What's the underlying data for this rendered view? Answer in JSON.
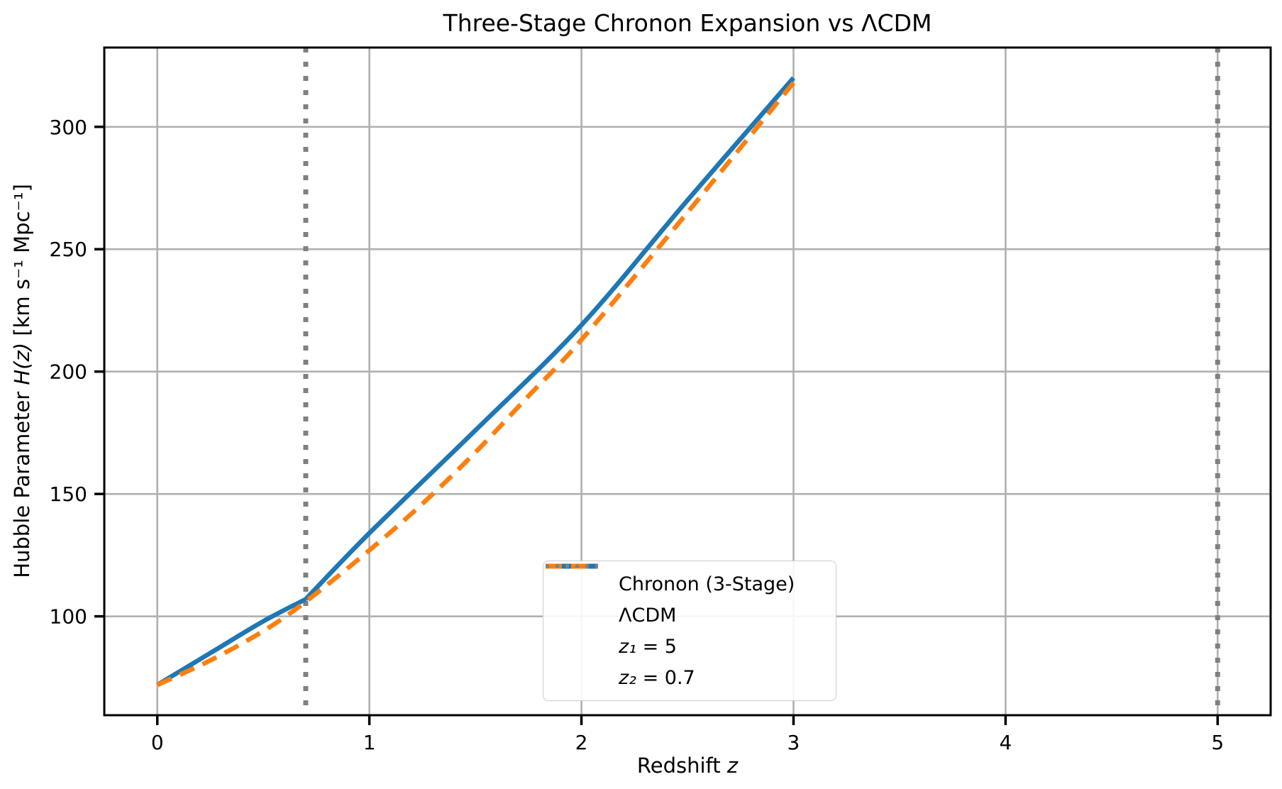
{
  "chart_data": {
    "type": "line",
    "title": "Three-Stage Chronon Expansion vs ΛCDM",
    "xlabel": "Redshift z",
    "ylabel": "Hubble Parameter H(z) [km s⁻¹ Mpc⁻¹]",
    "xlabel_parts": {
      "pre": "Redshift ",
      "math": "z"
    },
    "ylabel_parts": {
      "pre": "Hubble Parameter ",
      "math": "H(z)",
      "post": " [km s⁻¹ Mpc⁻¹]"
    },
    "xlim": [
      -0.25,
      5.25
    ],
    "ylim": [
      59.6,
      332.4
    ],
    "xticks": [
      0,
      1,
      2,
      3,
      4,
      5
    ],
    "yticks": [
      100,
      150,
      200,
      250,
      300
    ],
    "grid": true,
    "legend_position": "lower center",
    "series": [
      {
        "name": "Chronon (3-Stage)",
        "color": "#1f77b4",
        "style": "solid",
        "segments": [
          {
            "x": [
              0,
              0.25,
              0.5,
              0.7
            ],
            "y": [
              72,
              85,
              98,
              107
            ]
          },
          {
            "x": [
              0.7,
              1.0,
              1.5,
              2.0,
              2.5,
              3.0
            ],
            "y": [
              107,
              134,
              176,
              219,
              270,
              320
            ]
          }
        ]
      },
      {
        "name": "ΛCDM",
        "color": "#ff7f0e",
        "style": "dashed",
        "segments": [
          {
            "x": [
              0,
              0.25,
              0.5,
              0.7,
              1.0,
              1.25,
              1.5,
              1.75,
              2.0,
              2.5,
              3.0
            ],
            "y": [
              72,
              82,
              94,
              106,
              127,
              146,
              167,
              190,
              213,
              265,
              318
            ]
          }
        ]
      }
    ],
    "vlines": [
      {
        "label": "z₁ = 5",
        "x": 5.0,
        "color": "#808080",
        "style": "dotted"
      },
      {
        "label": "z₂ = 0.7",
        "x": 0.7,
        "color": "#808080",
        "style": "dotted"
      }
    ],
    "legend": [
      {
        "swatch": "solid",
        "color": "#1f77b4",
        "label": "Chronon (3-Stage)"
      },
      {
        "swatch": "dashed",
        "color": "#ff7f0e",
        "label": "ΛCDM"
      },
      {
        "swatch": "dotted",
        "color": "#808080",
        "label_math": "z₁",
        "label_rest": " = 5"
      },
      {
        "swatch": "dotted",
        "color": "#808080",
        "label_math": "z₂",
        "label_rest": " = 0.7"
      }
    ],
    "colors": {
      "grid": "#b0b0b0",
      "spine": "#000000",
      "background": "#ffffff",
      "tick_label": "#000000"
    }
  }
}
